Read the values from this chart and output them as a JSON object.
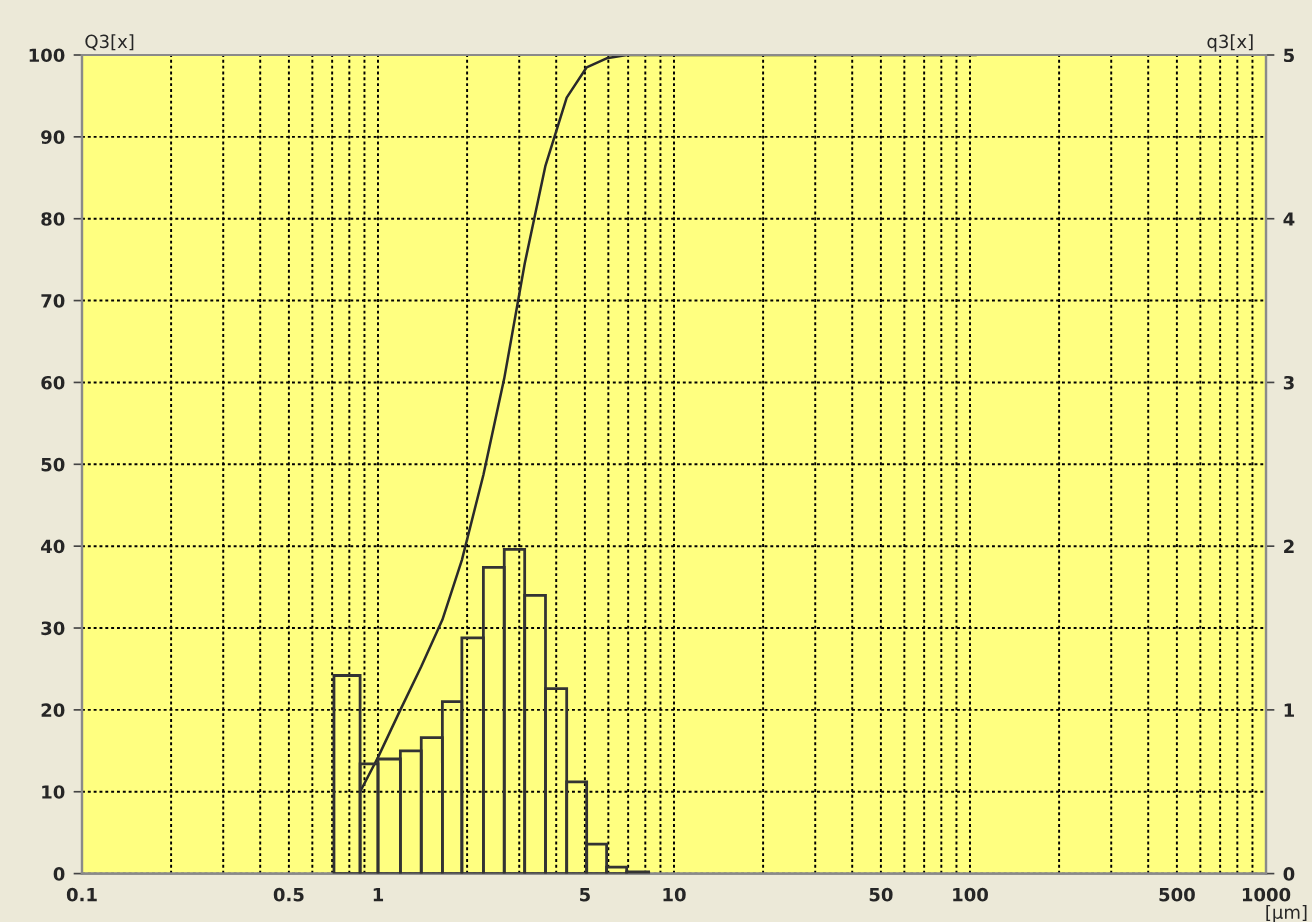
{
  "chart_data": {
    "type": "histogram",
    "ylabel": "Q3[x]",
    "y2label": "q3[x]",
    "xlabel": "[µm]",
    "log": "x",
    "grid": true,
    "xlim": [
      0.1,
      1000
    ],
    "xticks": [
      0.1,
      {
        "value": 0.2,
        "label": null
      },
      {
        "value": 0.3,
        "label": null
      },
      {
        "value": 0.4,
        "label": null
      },
      0.5,
      {
        "value": 0.6,
        "label": null
      },
      {
        "value": 0.7,
        "label": null
      },
      {
        "value": 0.8,
        "label": null
      },
      {
        "value": 0.9,
        "label": null
      },
      1,
      {
        "value": 2,
        "label": null
      },
      {
        "value": 3,
        "label": null
      },
      {
        "value": 4,
        "label": null
      },
      5,
      {
        "value": 6,
        "label": null
      },
      {
        "value": 7,
        "label": null
      },
      {
        "value": 8,
        "label": null
      },
      {
        "value": 9,
        "label": null
      },
      10,
      {
        "value": 20,
        "label": null
      },
      {
        "value": 30,
        "label": null
      },
      {
        "value": 40,
        "label": null
      },
      50,
      {
        "value": 60,
        "label": null
      },
      {
        "value": 70,
        "label": null
      },
      {
        "value": 80,
        "label": null
      },
      {
        "value": 90,
        "label": null
      },
      100,
      {
        "value": 200,
        "label": null
      },
      {
        "value": 300,
        "label": null
      },
      {
        "value": 400,
        "label": null
      },
      500,
      {
        "value": 600,
        "label": null
      },
      {
        "value": 700,
        "label": null
      },
      {
        "value": 800,
        "label": null
      },
      {
        "value": 900,
        "label": null
      },
      1000
    ],
    "ylim": [
      0,
      100
    ],
    "yticks": [
      0,
      10,
      20,
      30,
      40,
      50,
      60,
      70,
      80,
      90,
      100
    ],
    "y2lim": [
      0,
      5
    ],
    "y2ticks": [
      0,
      1,
      2,
      3,
      4,
      5
    ],
    "series": [
      {
        "axis": "y2",
        "color": "#333333",
        "bins": [
          0.71,
          0.87,
          1.0,
          1.19,
          1.4,
          1.65,
          1.92,
          2.27,
          2.67,
          3.13,
          3.68,
          4.34,
          5.07,
          5.92,
          6.92,
          8.21
        ],
        "values": [
          1.21,
          0.67,
          0.7,
          0.75,
          0.83,
          1.05,
          1.44,
          1.87,
          1.98,
          1.7,
          1.13,
          0.56,
          0.18,
          0.04,
          0.01
        ]
      },
      {
        "type": "line",
        "axis": "y",
        "color": "#2a2a2a",
        "x": [
          0.87,
          1.0,
          1.19,
          1.4,
          1.65,
          1.92,
          2.27,
          2.67,
          3.13,
          3.68,
          4.34,
          5.07,
          5.92,
          6.92,
          8.21,
          105
        ],
        "values": [
          10,
          14.2,
          20,
          25.3,
          31,
          38.3,
          48.7,
          60.5,
          74.5,
          86.5,
          94.8,
          98.5,
          99.6,
          100,
          100,
          100
        ]
      }
    ]
  }
}
